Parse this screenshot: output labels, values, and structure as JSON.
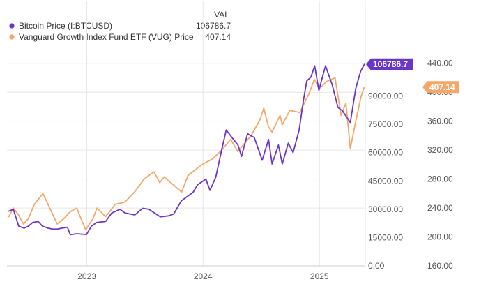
{
  "chart_data": {
    "type": "line",
    "legend": {
      "header": "VAL",
      "placement": "top-left"
    },
    "series": [
      {
        "name": "Bitcoin Price (I:BTCUSD)",
        "value_label": "106786.7",
        "color": "#6a35c9",
        "axis": "left",
        "points": [
          [
            "2022-05-01",
            29000
          ],
          [
            "2022-05-15",
            30000
          ],
          [
            "2022-06-01",
            21000
          ],
          [
            "2022-06-18",
            20000
          ],
          [
            "2022-07-01",
            21000
          ],
          [
            "2022-07-15",
            23000
          ],
          [
            "2022-08-01",
            23500
          ],
          [
            "2022-08-15",
            21000
          ],
          [
            "2022-09-01",
            20000
          ],
          [
            "2022-09-15",
            19500
          ],
          [
            "2022-10-01",
            19500
          ],
          [
            "2022-10-15",
            20000
          ],
          [
            "2022-11-01",
            20500
          ],
          [
            "2022-11-10",
            16500
          ],
          [
            "2022-12-01",
            17000
          ],
          [
            "2022-12-31",
            16600
          ],
          [
            "2023-01-15",
            21000
          ],
          [
            "2023-02-01",
            23000
          ],
          [
            "2023-03-01",
            23500
          ],
          [
            "2023-03-20",
            28000
          ],
          [
            "2023-04-15",
            30000
          ],
          [
            "2023-05-01",
            28000
          ],
          [
            "2023-06-01",
            27000
          ],
          [
            "2023-06-25",
            30500
          ],
          [
            "2023-07-15",
            30000
          ],
          [
            "2023-08-20",
            26000
          ],
          [
            "2023-09-15",
            26500
          ],
          [
            "2023-10-01",
            27500
          ],
          [
            "2023-10-25",
            34500
          ],
          [
            "2023-11-15",
            37000
          ],
          [
            "2023-12-01",
            39000
          ],
          [
            "2023-12-15",
            43000
          ],
          [
            "2024-01-10",
            46000
          ],
          [
            "2024-01-23",
            40000
          ],
          [
            "2024-02-10",
            47000
          ],
          [
            "2024-02-28",
            61000
          ],
          [
            "2024-03-14",
            72000
          ],
          [
            "2024-04-01",
            68000
          ],
          [
            "2024-04-20",
            64000
          ],
          [
            "2024-05-01",
            58000
          ],
          [
            "2024-05-20",
            70000
          ],
          [
            "2024-06-10",
            68000
          ],
          [
            "2024-07-05",
            56000
          ],
          [
            "2024-07-25",
            67000
          ],
          [
            "2024-08-05",
            54000
          ],
          [
            "2024-08-25",
            64000
          ],
          [
            "2024-09-06",
            54000
          ],
          [
            "2024-09-25",
            65000
          ],
          [
            "2024-10-10",
            60000
          ],
          [
            "2024-10-29",
            72000
          ],
          [
            "2024-11-12",
            88000
          ],
          [
            "2024-11-22",
            98000
          ],
          [
            "2024-12-05",
            100000
          ],
          [
            "2024-12-17",
            106000
          ],
          [
            "2024-12-30",
            93000
          ],
          [
            "2025-01-20",
            106000
          ],
          [
            "2025-02-10",
            96000
          ],
          [
            "2025-02-28",
            84000
          ],
          [
            "2025-03-15",
            82000
          ],
          [
            "2025-04-08",
            76000
          ],
          [
            "2025-04-25",
            94000
          ],
          [
            "2025-05-10",
            103000
          ],
          [
            "2025-05-22",
            106786.7
          ]
        ]
      },
      {
        "name": "Vanguard Growth Index Fund ETF (VUG) Price",
        "value_label": "407.14",
        "color": "#f5a76a",
        "axis": "right",
        "points": [
          [
            "2022-05-01",
            228
          ],
          [
            "2022-05-15",
            240
          ],
          [
            "2022-06-01",
            230
          ],
          [
            "2022-06-16",
            218
          ],
          [
            "2022-07-01",
            225
          ],
          [
            "2022-07-20",
            245
          ],
          [
            "2022-08-16",
            260
          ],
          [
            "2022-09-01",
            245
          ],
          [
            "2022-09-30",
            218
          ],
          [
            "2022-10-20",
            225
          ],
          [
            "2022-11-10",
            235
          ],
          [
            "2022-11-30",
            240
          ],
          [
            "2022-12-28",
            210
          ],
          [
            "2023-01-20",
            225
          ],
          [
            "2023-02-02",
            240
          ],
          [
            "2023-03-01",
            228
          ],
          [
            "2023-03-31",
            245
          ],
          [
            "2023-04-30",
            248
          ],
          [
            "2023-05-31",
            262
          ],
          [
            "2023-06-30",
            280
          ],
          [
            "2023-07-31",
            290
          ],
          [
            "2023-08-18",
            275
          ],
          [
            "2023-09-01",
            283
          ],
          [
            "2023-10-26",
            262
          ],
          [
            "2023-11-15",
            285
          ],
          [
            "2023-12-29",
            300
          ],
          [
            "2024-01-31",
            308
          ],
          [
            "2024-02-29",
            320
          ],
          [
            "2024-03-28",
            335
          ],
          [
            "2024-04-19",
            318
          ],
          [
            "2024-05-31",
            340
          ],
          [
            "2024-06-28",
            362
          ],
          [
            "2024-07-10",
            378
          ],
          [
            "2024-07-25",
            352
          ],
          [
            "2024-08-05",
            345
          ],
          [
            "2024-08-30",
            368
          ],
          [
            "2024-09-06",
            355
          ],
          [
            "2024-09-30",
            375
          ],
          [
            "2024-10-31",
            372
          ],
          [
            "2024-11-29",
            398
          ],
          [
            "2024-12-16",
            418
          ],
          [
            "2024-12-31",
            405
          ],
          [
            "2025-01-24",
            415
          ],
          [
            "2025-02-19",
            420
          ],
          [
            "2025-03-10",
            368
          ],
          [
            "2025-03-25",
            385
          ],
          [
            "2025-04-08",
            322
          ],
          [
            "2025-04-25",
            360
          ],
          [
            "2025-05-12",
            395
          ],
          [
            "2025-05-22",
            407.14
          ]
        ]
      }
    ],
    "x_axis": {
      "type": "date",
      "range": [
        "2022-04-25",
        "2025-05-25"
      ],
      "ticks": [
        {
          "date": "2023-01-01",
          "label": "2023"
        },
        {
          "date": "2024-01-01",
          "label": "2024"
        },
        {
          "date": "2025-01-01",
          "label": "2025"
        }
      ]
    },
    "y_left": {
      "range": [
        0,
        115000
      ],
      "ticks": [
        {
          "value": 0,
          "label": "0.00"
        },
        {
          "value": 15000,
          "label": "15000.00"
        },
        {
          "value": 30000,
          "label": "30000.00"
        },
        {
          "value": 45000,
          "label": "45000.00"
        },
        {
          "value": 60000,
          "label": "60000.00"
        },
        {
          "value": 75000,
          "label": "75000.00"
        },
        {
          "value": 90000,
          "label": "90000.00"
        }
      ]
    },
    "y_right": {
      "range": [
        160,
        460
      ],
      "ticks": [
        {
          "value": 160,
          "label": "160.00"
        },
        {
          "value": 200,
          "label": "200.00"
        },
        {
          "value": 240,
          "label": "240.00"
        },
        {
          "value": 280,
          "label": "280.00"
        },
        {
          "value": 320,
          "label": "320.00"
        },
        {
          "value": 360,
          "label": "360.00"
        },
        {
          "value": 400,
          "label": "400.00"
        },
        {
          "value": 440,
          "label": "440.00"
        }
      ]
    },
    "grid": true
  }
}
